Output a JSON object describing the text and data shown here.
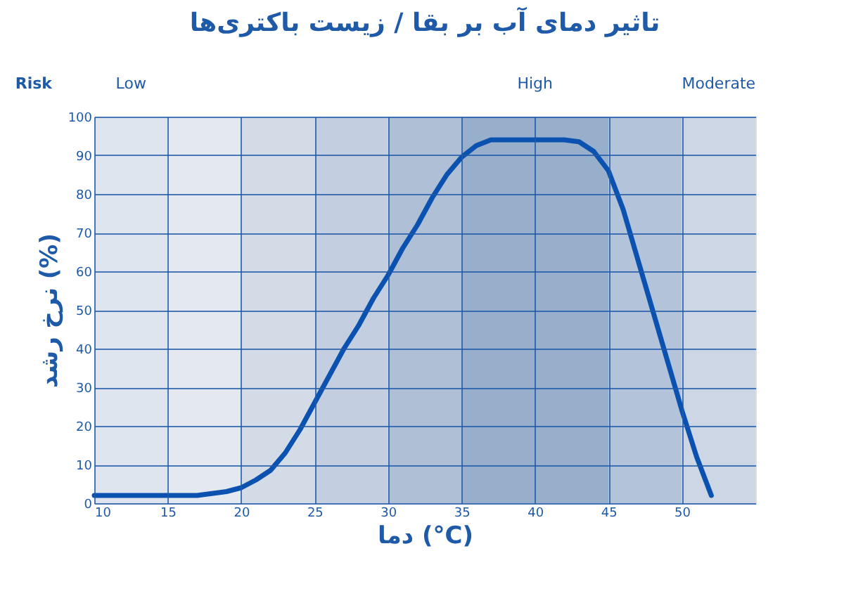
{
  "chart_data": {
    "type": "line",
    "title": "تاثیر دمای آب بر بقا / زیست باکتری‌ها",
    "xlabel": "دما (°C)",
    "ylabel": "نرخ رشد (%)",
    "annotations": [
      "Risk"
    ],
    "x": [
      10,
      12,
      14,
      16,
      17,
      18,
      19,
      20,
      21,
      22,
      23,
      24,
      25,
      26,
      27,
      28,
      29,
      30,
      31,
      32,
      33,
      34,
      35,
      36,
      37,
      38,
      40,
      42,
      43,
      44,
      45,
      46,
      47,
      48,
      49,
      50,
      51,
      52
    ],
    "series": [
      {
        "color": "#0b52b0",
        "values": [
          2,
          2,
          2,
          2,
          2,
          2.5,
          3,
          4,
          6,
          8.5,
          13,
          19,
          26,
          33,
          40,
          46,
          53,
          59,
          66,
          72,
          79,
          85,
          89.5,
          92.5,
          94,
          94,
          94,
          94,
          93.5,
          91,
          86,
          76,
          63,
          50,
          37,
          24,
          12,
          2
        ]
      }
    ],
    "xlim": [
      10,
      55
    ],
    "xticks": [
      10,
      15,
      20,
      25,
      30,
      35,
      40,
      45,
      50
    ],
    "ylim": [
      0,
      100
    ],
    "yticks": [
      0,
      10,
      20,
      30,
      40,
      50,
      60,
      70,
      80,
      90,
      100
    ],
    "grid": true,
    "marker": "none",
    "line_style": "solid",
    "bands": [
      {
        "axis": "x",
        "from": 10,
        "to": 15,
        "label": "Low",
        "color": "#dfe5ee"
      },
      {
        "axis": "x",
        "from": 15,
        "to": 20,
        "color": "#e4e9f1"
      },
      {
        "axis": "x",
        "from": 20,
        "to": 25,
        "color": "#d3dbe7"
      },
      {
        "axis": "x",
        "from": 25,
        "to": 30,
        "color": "#c3cfe0"
      },
      {
        "axis": "x",
        "from": 30,
        "to": 35,
        "color": "#aebfd6"
      },
      {
        "axis": "x",
        "from": 35,
        "to": 45,
        "label": "High",
        "color": "#98afcc"
      },
      {
        "axis": "x",
        "from": 45,
        "to": 50,
        "color": "#b3c3d9"
      },
      {
        "axis": "x",
        "from": 50,
        "to": 55,
        "label": "Moderate",
        "color": "#ccd6e4"
      }
    ]
  }
}
